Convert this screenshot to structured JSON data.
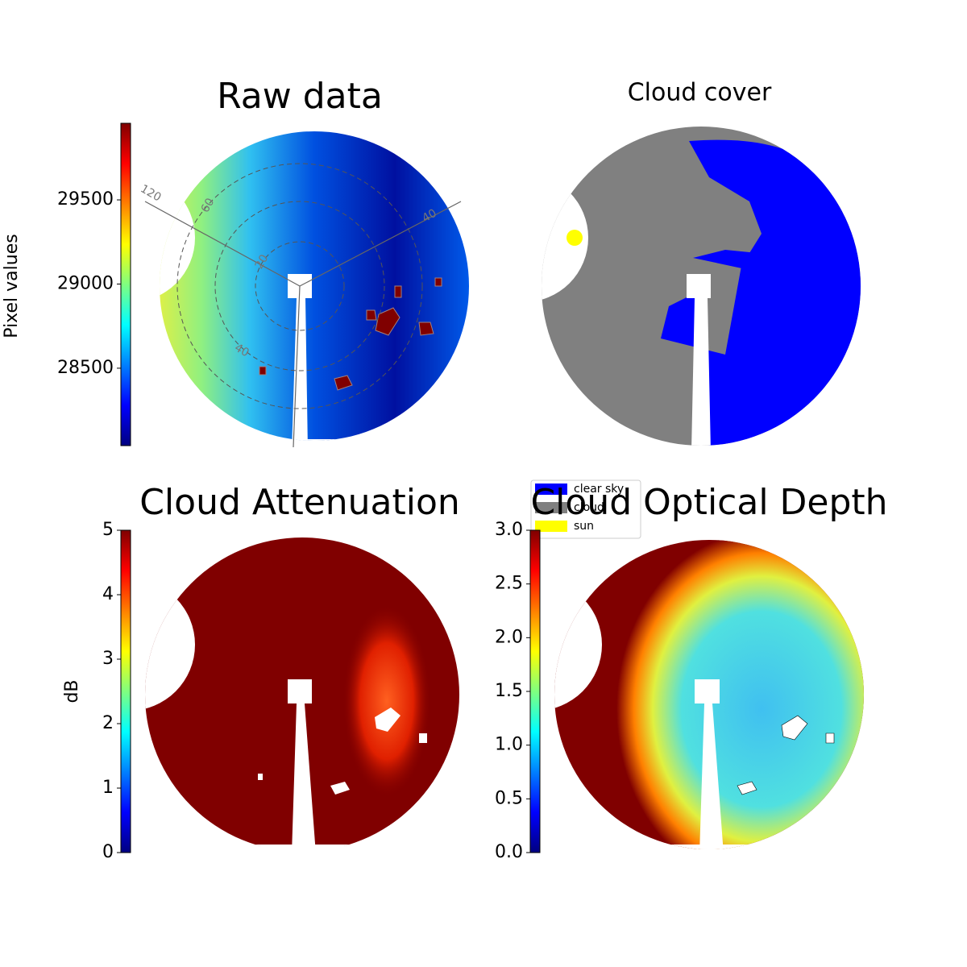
{
  "chart_data": [
    {
      "type": "image",
      "title": "Raw data",
      "colormap": "jet",
      "ylabel": "Pixel values",
      "ylim": [
        28040,
        29955
      ],
      "yticks": [
        28500,
        29000,
        29500
      ],
      "annotations": [
        "120",
        "60",
        "20",
        "40",
        "40"
      ]
    },
    {
      "type": "image",
      "title": "Cloud cover",
      "series": [
        {
          "name": "clear sky",
          "color": "#0000ff"
        },
        {
          "name": "cloud",
          "color": "#808080"
        },
        {
          "name": "sun",
          "color": "#ffff00"
        }
      ]
    },
    {
      "type": "image",
      "title": "Cloud Attenuation",
      "colormap": "jet",
      "ylabel": "dB",
      "ylim": [
        0,
        5
      ],
      "yticks": [
        0,
        1,
        2,
        3,
        4,
        5
      ]
    },
    {
      "type": "image",
      "title": "Cloud Optical Depth",
      "colormap": "jet",
      "ylim": [
        0,
        3
      ],
      "yticks": [
        {
          "value": 0,
          "label": "0.0"
        },
        0.5,
        {
          "value": 1,
          "label": "1.0"
        },
        1.5,
        {
          "value": 2,
          "label": "2.0"
        },
        2.5,
        {
          "value": 3,
          "label": "3.0"
        }
      ]
    }
  ]
}
